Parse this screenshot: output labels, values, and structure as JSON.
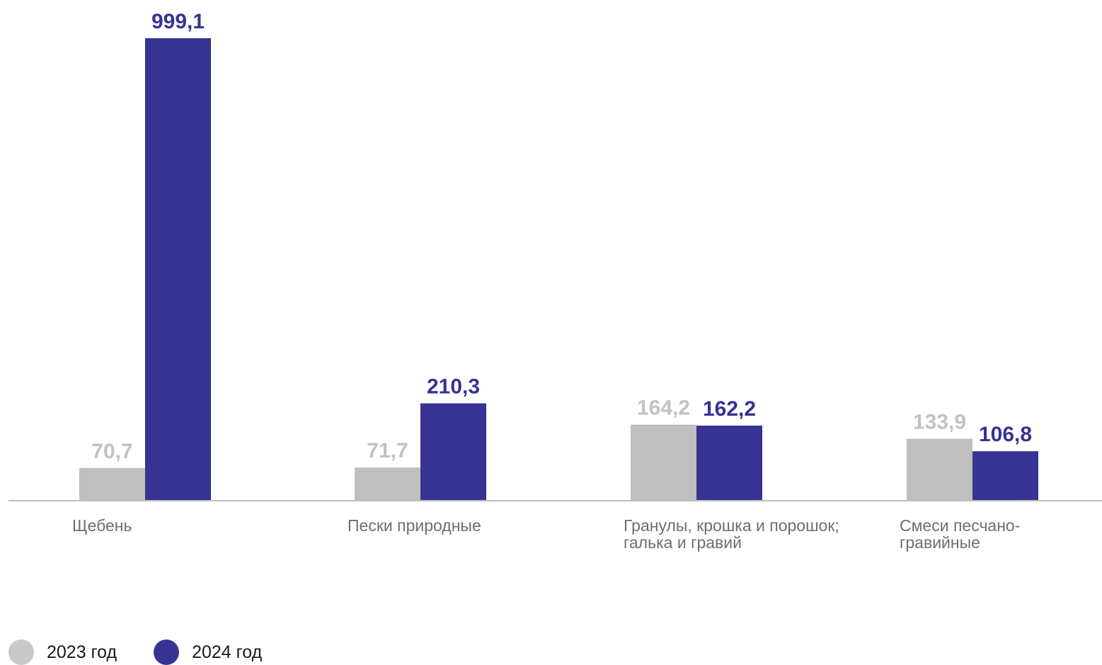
{
  "colors": {
    "series_2023": "#bfbfbf",
    "series_2024": "#363394",
    "label_2023": "#c2c2c2",
    "label_2024": "#363394",
    "category_text": "#6e6e6e",
    "axis": "#bdbdbd"
  },
  "legend": [
    {
      "label": "2023 год"
    },
    {
      "label": "2024 год"
    }
  ],
  "chart_data": {
    "type": "bar",
    "categories": [
      [
        "Щебень"
      ],
      [
        "Пески природные"
      ],
      [
        "Гранулы, крошка и порошок;",
        "галька и гравий"
      ],
      [
        "Смеси песчано-",
        "гравийные"
      ]
    ],
    "series": [
      {
        "name": "2023 год",
        "values": [
          70.7,
          71.7,
          164.2,
          133.9
        ],
        "labels": [
          "70,7",
          "71,7",
          "164,2",
          "133,9"
        ]
      },
      {
        "name": "2024 год",
        "values": [
          999.1,
          210.3,
          162.2,
          106.8
        ],
        "labels": [
          "999,1",
          "210,3",
          "162,2",
          "106,8"
        ]
      }
    ],
    "ylim": [
      0,
      999.1
    ],
    "grid": false,
    "legend_position": "bottom-left"
  }
}
